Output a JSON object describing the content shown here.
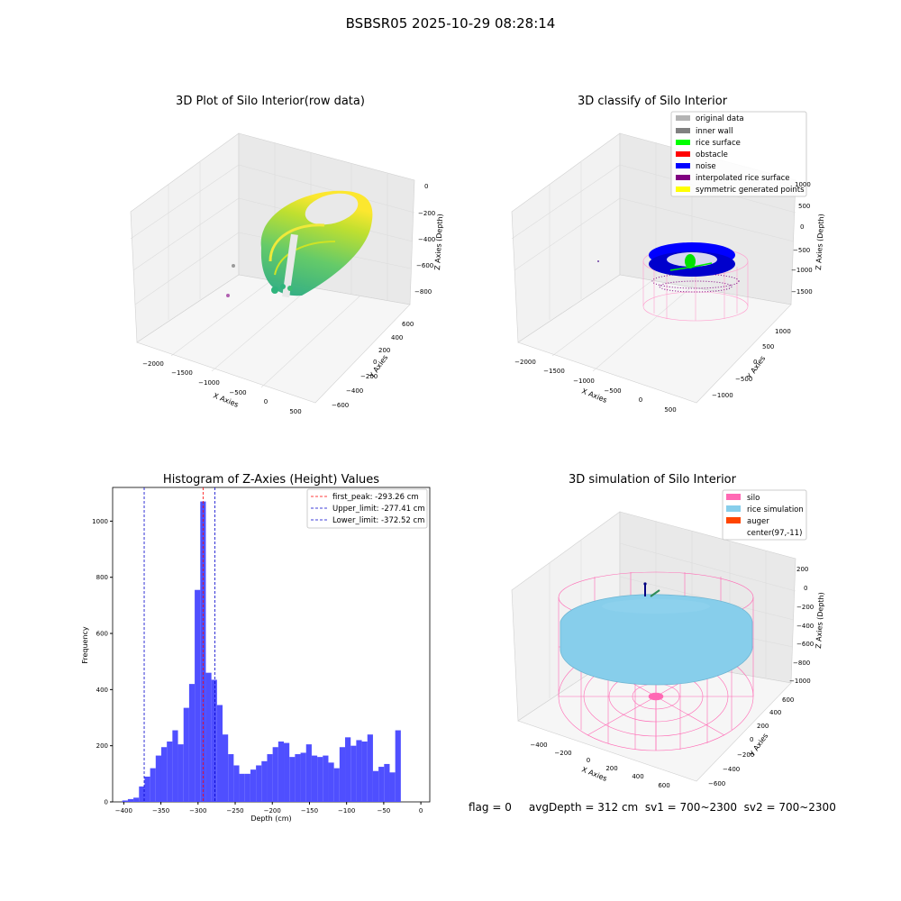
{
  "suptitle": "BSBSR05 2025-10-29 08:28:14",
  "footer": "flag = 0     avgDepth = 312 cm  sv1 = 700~2300  sv2 = 700~2300",
  "colors": {
    "hist_bar": "#4f4fff",
    "first_peak": "#ff0000",
    "limits": "#0000cc",
    "pane": "#f2f2f2",
    "grid": "#d9d9d9",
    "silo": "#ff69b4",
    "rice_sim": "#87ceeb",
    "auger": "#ff4500",
    "original": "#b3b3b3",
    "inner_wall": "#808080",
    "rice_surface": "#00ff00",
    "obstacle": "#ff0000",
    "noise": "#0000ff",
    "interp": "#800080",
    "symmetric": "#ffff00"
  },
  "chart_data": [
    {
      "type": "scatter",
      "projection": "3d",
      "title": "3D Plot of Silo Interior(row data)",
      "xlabel": "X Axies",
      "ylabel": "Y Axies",
      "zlabel": "Z Axies (Depth)",
      "xticks": [
        "−2000",
        "−1500",
        "−1000",
        "−500",
        "0",
        "500"
      ],
      "yticks": [
        "−600",
        "−400",
        "−200",
        "0",
        "200",
        "400",
        "600"
      ],
      "zticks": [
        "0",
        "−200",
        "−400",
        "−600",
        "−800"
      ],
      "colormap": "viridis",
      "description_points": "ring-shaped point cloud of silo wall, colored by depth"
    },
    {
      "type": "scatter",
      "projection": "3d",
      "title": "3D classify of Silo Interior",
      "xlabel": "X Axies",
      "ylabel": "Y Axies",
      "zlabel": "Z Axies (Depth)",
      "xticks": [
        "−2000",
        "−1500",
        "−1000",
        "−500",
        "0",
        "500"
      ],
      "yticks": [
        "−1000",
        "−500",
        "0",
        "500",
        "1000"
      ],
      "zticks": [
        "1000",
        "500",
        "0",
        "−500",
        "−1000",
        "−1500"
      ],
      "legend": [
        {
          "label": "original data",
          "color": "#b3b3b3"
        },
        {
          "label": "inner wall",
          "color": "#808080"
        },
        {
          "label": "rice surface",
          "color": "#00ff00"
        },
        {
          "label": "obstacle",
          "color": "#ff0000"
        },
        {
          "label": "noise",
          "color": "#0000ff"
        },
        {
          "label": "interpolated rice surface",
          "color": "#800080"
        },
        {
          "label": "symmetric generated points",
          "color": "#ffff00"
        }
      ],
      "legend_loc": "top-right"
    },
    {
      "type": "bar",
      "title": "Histogram of Z-Axies (Height) Values",
      "xlabel": "Depth (cm)",
      "ylabel": "Frequency",
      "xlim": [
        -415,
        12
      ],
      "ylim": [
        0,
        1120
      ],
      "xticks": [
        -400,
        -350,
        -300,
        -250,
        -200,
        -150,
        -100,
        -50,
        0
      ],
      "xtick_labels": [
        "−400",
        "−350",
        "−300",
        "−250",
        "−200",
        "−150",
        "−100",
        "−50",
        "0"
      ],
      "yticks": [
        0,
        200,
        400,
        600,
        800,
        1000
      ],
      "bin_start": -402,
      "bin_width": 7.5,
      "values": [
        5,
        10,
        15,
        55,
        90,
        120,
        165,
        195,
        215,
        255,
        205,
        335,
        420,
        755,
        1070,
        460,
        435,
        345,
        240,
        170,
        130,
        100,
        100,
        115,
        130,
        145,
        170,
        195,
        215,
        210,
        160,
        170,
        175,
        205,
        165,
        160,
        165,
        140,
        120,
        195,
        230,
        200,
        220,
        215,
        240,
        110,
        125,
        135,
        105,
        255
      ],
      "vlines": [
        {
          "x": -293.26,
          "label": "first_peak: -293.26 cm",
          "color": "#ff0000"
        },
        {
          "x": -277.41,
          "label": "Upper_limit: -277.41 cm",
          "color": "#0000cc"
        },
        {
          "x": -372.52,
          "label": "Lower_limit: -372.52 cm",
          "color": "#0000cc"
        }
      ],
      "legend_loc": "top-right",
      "grid": false
    },
    {
      "type": "scatter",
      "projection": "3d",
      "title": "3D simulation of Silo Interior",
      "xlabel": "X Axies",
      "ylabel": "Y Axies",
      "zlabel": "Z Axies (Depth)",
      "xticks": [
        "−400",
        "−200",
        "0",
        "200",
        "400",
        "600"
      ],
      "yticks": [
        "−600",
        "−400",
        "−200",
        "0",
        "200",
        "400",
        "600"
      ],
      "zticks": [
        "200",
        "0",
        "−200",
        "−400",
        "−600",
        "−800",
        "−1000"
      ],
      "legend": [
        {
          "label": "silo",
          "color": "#ff69b4"
        },
        {
          "label": "rice simulation",
          "color": "#87ceeb"
        },
        {
          "label": "auger",
          "color": "#ff4500"
        },
        {
          "label": "center(97,-11)",
          "color": ""
        }
      ],
      "legend_loc": "top-right"
    }
  ]
}
